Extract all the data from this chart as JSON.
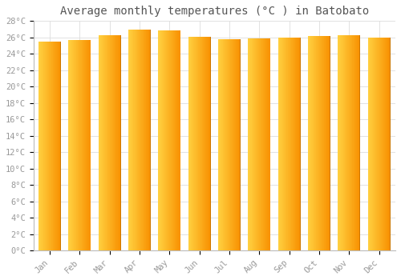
{
  "title": "Average monthly temperatures (°C ) in Batobato",
  "months": [
    "Jan",
    "Feb",
    "Mar",
    "Apr",
    "May",
    "Jun",
    "Jul",
    "Aug",
    "Sep",
    "Oct",
    "Nov",
    "Dec"
  ],
  "values": [
    25.5,
    25.7,
    26.3,
    27.0,
    26.9,
    26.1,
    25.8,
    25.9,
    26.0,
    26.2,
    26.3,
    26.0
  ],
  "bar_color_left": "#FFD040",
  "bar_color_right": "#F89000",
  "bar_color_edge": "#CC7700",
  "ylim": [
    0,
    28
  ],
  "ytick_step": 2,
  "background_color": "#FFFFFF",
  "plot_bg_color": "#FFFFFF",
  "grid_color": "#DDDDDD",
  "title_fontsize": 10,
  "tick_fontsize": 7.5,
  "font_family": "monospace",
  "bar_width": 0.75,
  "figsize": [
    5.0,
    3.5
  ],
  "dpi": 100
}
